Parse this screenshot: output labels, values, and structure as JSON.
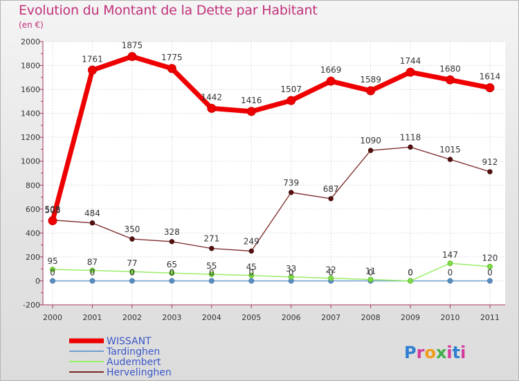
{
  "title": "Evolution du Montant de la Dette par Habitant",
  "unit": "(en €)",
  "brand": {
    "text": "Proxiti"
  },
  "chart_data": {
    "type": "line",
    "x": [
      "2000",
      "2001",
      "2002",
      "2003",
      "2004",
      "2005",
      "2006",
      "2007",
      "2008",
      "2009",
      "2010",
      "2011"
    ],
    "ylim": [
      -200,
      2000
    ],
    "yticks": [
      "-200",
      "0",
      "200",
      "400",
      "600",
      "800",
      "1000",
      "1200",
      "1400",
      "1600",
      "1800",
      "2000"
    ],
    "grid": true,
    "legend_position": "bottom-left",
    "series": [
      {
        "name": "WISSANT",
        "color": "#ee0000",
        "values": [
          503,
          1761,
          1875,
          1775,
          1442,
          1416,
          1507,
          1669,
          1589,
          1744,
          1680,
          1614
        ],
        "labels": [
          "503",
          "1761",
          "1875",
          "1775",
          "1442",
          "1416",
          "1507",
          "1669",
          "1589",
          "1744",
          "1680",
          "1614"
        ]
      },
      {
        "name": "Tardinghen",
        "color": "#6f9ecb",
        "values": [
          0,
          0,
          0,
          0,
          0,
          0,
          0,
          0,
          0,
          0,
          0,
          0
        ],
        "labels": [
          "0",
          "0",
          "0",
          "0",
          "0",
          "0",
          "0",
          "0",
          "0",
          "0",
          "0",
          "0"
        ]
      },
      {
        "name": "Audembert",
        "color": "#99ee66",
        "values": [
          95,
          87,
          77,
          65,
          55,
          45,
          33,
          22,
          11,
          0,
          147,
          120
        ],
        "labels": [
          "95",
          "87",
          "77",
          "65",
          "55",
          "45",
          "33",
          "22",
          "11",
          "0",
          "147",
          "120"
        ]
      },
      {
        "name": "Hervelinghen",
        "color": "#7a2424",
        "values": [
          508,
          484,
          350,
          328,
          271,
          249,
          739,
          687,
          1090,
          1118,
          1015,
          912
        ],
        "labels": [
          "508",
          "484",
          "350",
          "328",
          "271",
          "249",
          "739",
          "687",
          "1090",
          "1118",
          "1015",
          "912"
        ]
      }
    ]
  }
}
